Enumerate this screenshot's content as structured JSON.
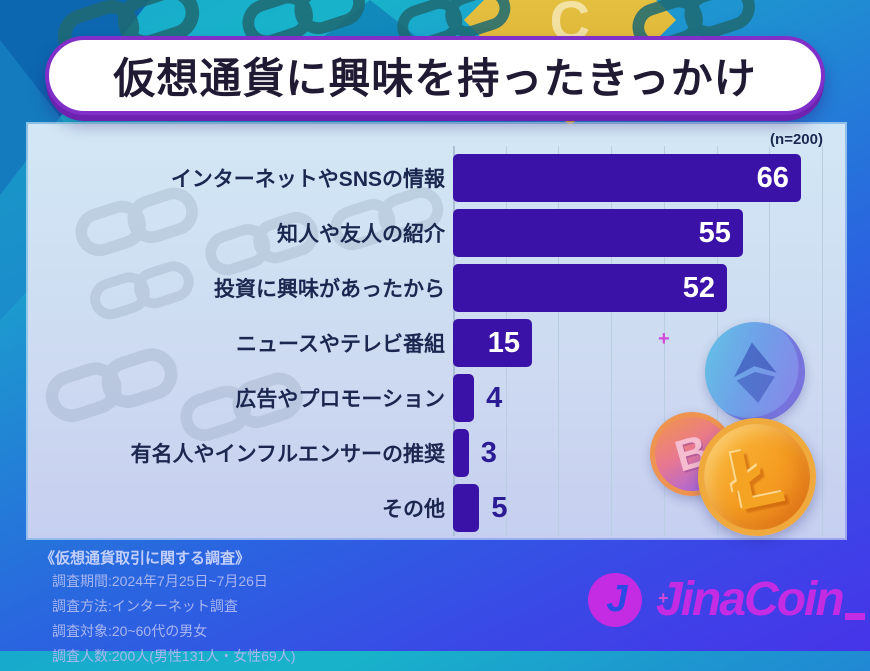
{
  "header": {
    "title": "仮想通貨に興味を持ったきっかけ"
  },
  "chart": {
    "sample_size_label": "(n=200)"
  },
  "chart_data": {
    "type": "bar",
    "orientation": "horizontal",
    "title": "仮想通貨に興味を持ったきっかけ",
    "sample_size": "n=200",
    "categories": [
      "インターネットやSNSの情報",
      "知人や友人の紹介",
      "投資に興味があったから",
      "ニュースやテレビ番組",
      "広告やプロモーション",
      "有名人やインフルエンサーの推奨",
      "その他"
    ],
    "values": [
      66,
      55,
      52,
      15,
      4,
      3,
      5
    ],
    "xlabel": "",
    "ylabel": "",
    "xmax": 74,
    "gridlines": [
      10,
      20,
      30,
      40,
      50,
      60,
      70
    ],
    "grid": "on",
    "legend": "none",
    "inside_label_threshold": 10,
    "bar_color": "#3a12a8",
    "value_inside_color": "#ffffff",
    "value_outside_color": "#2b1c96"
  },
  "footer": {
    "survey_heading": "《仮想通貨取引に関する調査》",
    "survey_lines": [
      "調査期間:2024年7月25日~7月26日",
      "調査方法:インターネット調査",
      "調査対象:20~60代の男女",
      "調査人数:200人(男性131人・女性69人)"
    ],
    "logo_text": "JinaCoin",
    "logo_icon_letter": "J"
  },
  "coins": {
    "bitcoin_symbol": "B",
    "litecoin_symbol": "Ł",
    "diamond_letter": "C"
  },
  "colors": {
    "accent_purple": "#8030c8",
    "bar": "#3a12a8",
    "panel_top": "#d2e7f5",
    "panel_bottom": "#c6cff0",
    "logo_magenta": "#c32ce2"
  }
}
